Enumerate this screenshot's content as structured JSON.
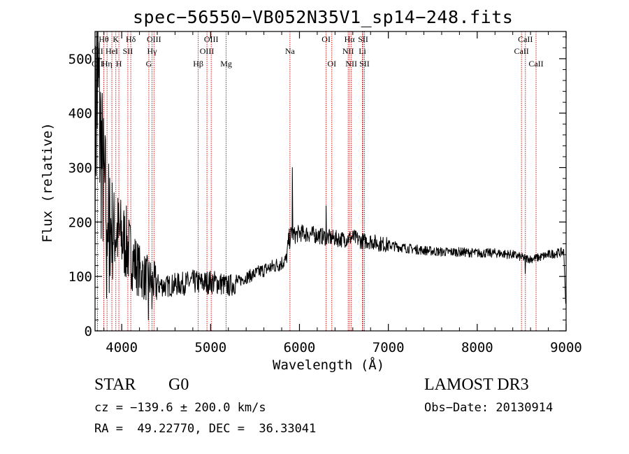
{
  "chart_data": {
    "type": "line",
    "title": "spec−56550−VB052N35V1_sp14−248.fits",
    "xlabel": "Wavelength (Å)",
    "ylabel": "Flux (relative)",
    "xlim": [
      3700,
      9000
    ],
    "ylim": [
      0,
      550
    ],
    "xticks": [
      4000,
      5000,
      6000,
      7000,
      8000,
      9000
    ],
    "yticks": [
      0,
      100,
      200,
      300,
      400,
      500
    ],
    "grid": false,
    "series_color": "#000000",
    "line_color": "#cc0000",
    "spectrum_anchors": [
      [
        3700,
        320
      ],
      [
        3720,
        470
      ],
      [
        3740,
        420
      ],
      [
        3760,
        360
      ],
      [
        3780,
        300
      ],
      [
        3800,
        260
      ],
      [
        3830,
        230
      ],
      [
        3860,
        200
      ],
      [
        3900,
        185
      ],
      [
        3950,
        180
      ],
      [
        4000,
        170
      ],
      [
        4050,
        160
      ],
      [
        4100,
        140
      ],
      [
        4150,
        125
      ],
      [
        4200,
        110
      ],
      [
        4250,
        100
      ],
      [
        4300,
        95
      ],
      [
        4400,
        85
      ],
      [
        4500,
        82
      ],
      [
        4600,
        85
      ],
      [
        4700,
        87
      ],
      [
        4800,
        90
      ],
      [
        4900,
        88
      ],
      [
        5000,
        90
      ],
      [
        5100,
        88
      ],
      [
        5200,
        82
      ],
      [
        5300,
        90
      ],
      [
        5400,
        98
      ],
      [
        5500,
        105
      ],
      [
        5600,
        112
      ],
      [
        5700,
        118
      ],
      [
        5800,
        125
      ],
      [
        5850,
        130
      ],
      [
        5880,
        165
      ],
      [
        5910,
        180
      ],
      [
        5950,
        175
      ],
      [
        6000,
        180
      ],
      [
        6100,
        178
      ],
      [
        6200,
        176
      ],
      [
        6300,
        172
      ],
      [
        6400,
        170
      ],
      [
        6500,
        168
      ],
      [
        6600,
        172
      ],
      [
        6700,
        165
      ],
      [
        6800,
        165
      ],
      [
        6900,
        160
      ],
      [
        7000,
        158
      ],
      [
        7200,
        152
      ],
      [
        7400,
        148
      ],
      [
        7600,
        145
      ],
      [
        7800,
        145
      ],
      [
        8000,
        143
      ],
      [
        8200,
        143
      ],
      [
        8400,
        140
      ],
      [
        8500,
        135
      ],
      [
        8600,
        132
      ],
      [
        8700,
        135
      ],
      [
        8800,
        140
      ],
      [
        8900,
        143
      ],
      [
        8980,
        145
      ]
    ],
    "emission_spikes": [
      {
        "x": 5920,
        "y": 300
      },
      {
        "x": 6300,
        "y": 230
      }
    ],
    "absorption_dips": [
      {
        "x": 3830,
        "y": 60
      },
      {
        "x": 3860,
        "y": 70
      },
      {
        "x": 4300,
        "y": 20
      },
      {
        "x": 4340,
        "y": 40
      },
      {
        "x": 8540,
        "y": 105
      },
      {
        "x": 8995,
        "y": 50
      }
    ],
    "spectral_lines": [
      {
        "name": "Hθ",
        "x": 3798,
        "row": 0
      },
      {
        "name": "K",
        "x": 3934,
        "row": 0
      },
      {
        "name": "Hδ",
        "x": 4102,
        "row": 0
      },
      {
        "name": "OIII",
        "x": 4363,
        "row": 0
      },
      {
        "name": "OIII",
        "x": 5007,
        "row": 0
      },
      {
        "name": "OI",
        "x": 6300,
        "row": 0
      },
      {
        "name": "Hα",
        "x": 6563,
        "row": 0
      },
      {
        "name": "SII",
        "x": 6716,
        "row": 0
      },
      {
        "name": "CaII",
        "x": 8542,
        "row": 0
      },
      {
        "name": "OII",
        "x": 3727,
        "row": 1
      },
      {
        "name": "HeI",
        "x": 3889,
        "row": 1
      },
      {
        "name": "SII",
        "x": 4069,
        "row": 1
      },
      {
        "name": "Hγ",
        "x": 4341,
        "row": 1
      },
      {
        "name": "OIII",
        "x": 4959,
        "row": 1
      },
      {
        "name": "Na",
        "x": 5893,
        "row": 1
      },
      {
        "name": "NII",
        "x": 6548,
        "row": 1
      },
      {
        "name": "Li",
        "x": 6708,
        "row": 1
      },
      {
        "name": "CaII",
        "x": 8498,
        "row": 1
      },
      {
        "name": "OII",
        "x": 3727,
        "row": 2
      },
      {
        "name": "Hη",
        "x": 3835,
        "row": 2
      },
      {
        "name": "H",
        "x": 3968,
        "row": 2
      },
      {
        "name": "G",
        "x": 4305,
        "row": 2
      },
      {
        "name": "Hβ",
        "x": 4861,
        "row": 2
      },
      {
        "name": "Mg",
        "x": 5175,
        "row": 2
      },
      {
        "name": "OI",
        "x": 6364,
        "row": 2
      },
      {
        "name": "NII",
        "x": 6583,
        "row": 2
      },
      {
        "name": "SII",
        "x": 6731,
        "row": 2
      },
      {
        "name": "CaII",
        "x": 8662,
        "row": 2
      }
    ]
  },
  "info": {
    "object_class": "STAR",
    "subclass": "G0",
    "survey": "LAMOST DR3",
    "cz": "cz = −139.6 ± 200.0 km/s",
    "obs_date": "Obs−Date: 20130914",
    "radec": "RA =  49.22770, DEC =  36.33041"
  }
}
